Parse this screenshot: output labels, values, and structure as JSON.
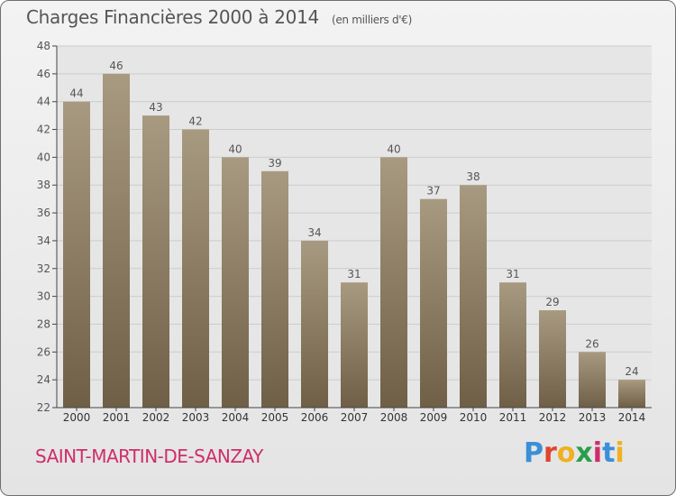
{
  "title": "Charges Financières 2000 à 2014",
  "subtitle": "(en milliers d'€)",
  "commune": "SAINT-MARTIN-DE-SANZAY",
  "brand": {
    "letters": [
      "P",
      "r",
      "o",
      "x",
      "i",
      "t",
      "i"
    ],
    "colors": [
      "#3a8fd8",
      "#e0452b",
      "#f0b020",
      "#2a9f4a",
      "#cf2d6a",
      "#3a8fd8",
      "#f0b020"
    ]
  },
  "colors": {
    "bar_top": "#a89a80",
    "bar_bottom": "#6e5f46",
    "grid": "#cccccc",
    "text": "#555555",
    "title": "#555555",
    "commune": "#cf2d6a"
  },
  "chart_data": {
    "type": "bar",
    "categories": [
      "2000",
      "2001",
      "2002",
      "2003",
      "2004",
      "2005",
      "2006",
      "2007",
      "2008",
      "2009",
      "2010",
      "2011",
      "2012",
      "2013",
      "2014"
    ],
    "values": [
      44,
      46,
      43,
      42,
      40,
      39,
      34,
      31,
      40,
      37,
      38,
      31,
      29,
      26,
      24
    ],
    "ylim": [
      22,
      48
    ],
    "yticks": [
      22,
      24,
      26,
      28,
      30,
      32,
      34,
      36,
      38,
      40,
      42,
      44,
      46,
      48
    ],
    "grid": true,
    "data_labels": true
  }
}
